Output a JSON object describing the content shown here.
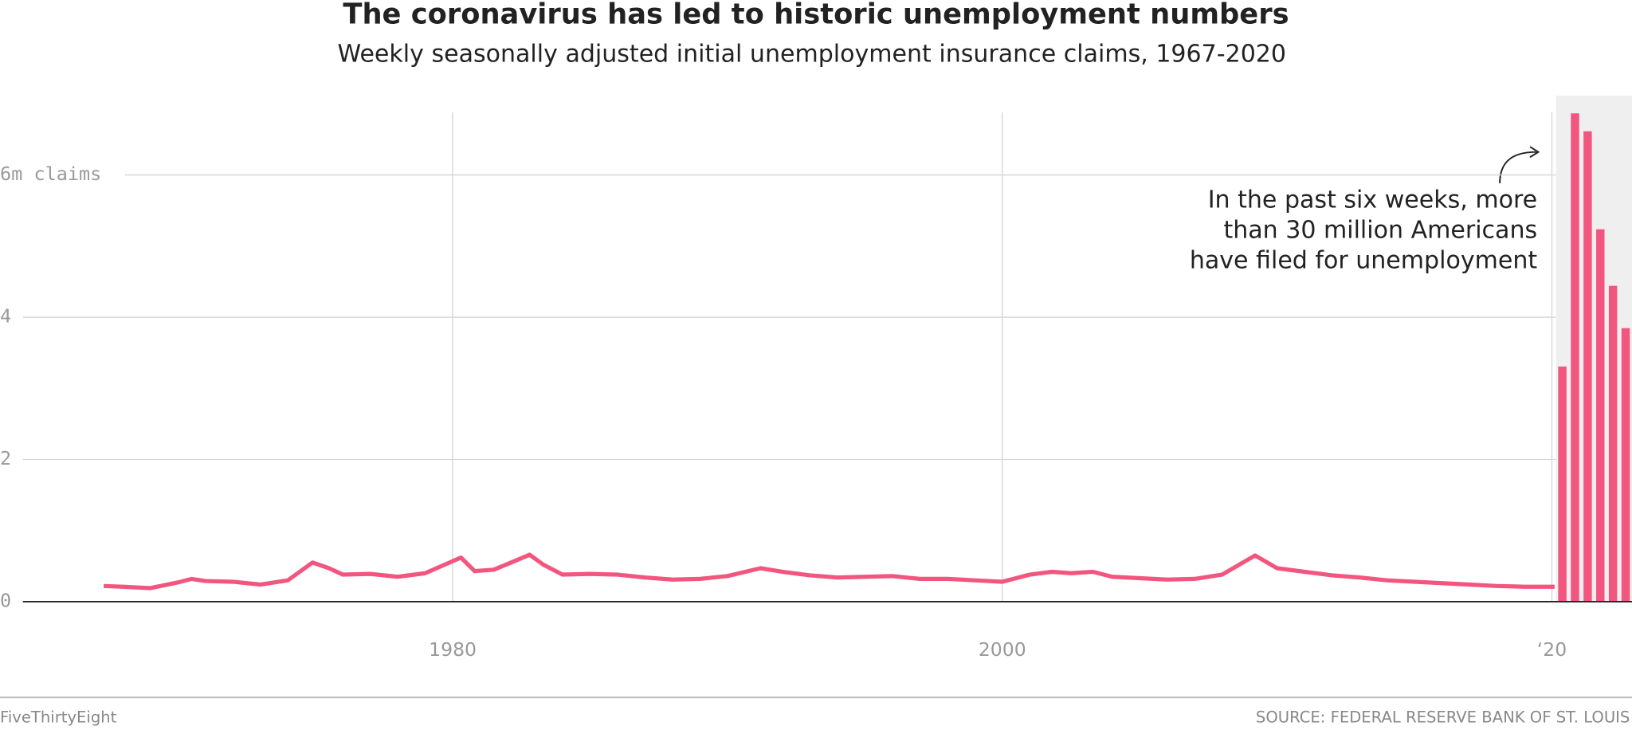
{
  "chart_data": [
    {
      "type": "line",
      "title": "The coronavirus has led to historic unemployment numbers",
      "subtitle": "Weekly seasonally adjusted initial unemployment insurance claims, 1967-2020",
      "color": "#f2567f",
      "x": [
        1967.3,
        1968,
        1969,
        1970,
        1970.5,
        1971,
        1972,
        1973,
        1974,
        1974.9,
        1975.5,
        1976,
        1977,
        1978,
        1979,
        1980.3,
        1980.8,
        1981.5,
        1982,
        1982.8,
        1983.3,
        1984,
        1985,
        1986,
        1987,
        1988,
        1989,
        1990,
        1991.2,
        1992,
        1993,
        1994,
        1995,
        1996,
        1997,
        1998,
        1999,
        2000,
        2001,
        2001.8,
        2002.5,
        2003.3,
        2004,
        2005,
        2006,
        2007,
        2008,
        2009.2,
        2010,
        2011,
        2012,
        2013,
        2014,
        2015,
        2016,
        2017,
        2018,
        2019,
        2020.1
      ],
      "values": [
        0.22,
        0.21,
        0.19,
        0.27,
        0.32,
        0.29,
        0.28,
        0.24,
        0.3,
        0.55,
        0.47,
        0.38,
        0.39,
        0.35,
        0.4,
        0.62,
        0.43,
        0.45,
        0.53,
        0.66,
        0.52,
        0.38,
        0.39,
        0.38,
        0.34,
        0.31,
        0.32,
        0.36,
        0.47,
        0.42,
        0.37,
        0.34,
        0.35,
        0.36,
        0.32,
        0.32,
        0.3,
        0.28,
        0.38,
        0.42,
        0.4,
        0.42,
        0.35,
        0.33,
        0.31,
        0.32,
        0.38,
        0.65,
        0.47,
        0.42,
        0.37,
        0.34,
        0.3,
        0.28,
        0.26,
        0.24,
        0.22,
        0.21,
        0.21
      ],
      "xlim": [
        1964.36,
        2020.15
      ],
      "xticks": [
        1980,
        2000,
        {
          "value": 2020,
          "label": "‘20"
        }
      ],
      "ylim": [
        0,
        6.88
      ],
      "yticks": [
        0,
        2,
        4,
        {
          "value": 6,
          "label": "6m claims"
        }
      ],
      "grid": true,
      "annotation": [
        "In the past six weeks, more",
        "than 30 million Americans",
        "have filed for unemployment"
      ],
      "credit": "FiveThirtyEight",
      "source": "SOURCE: FEDERAL RESERVE BANK OF ST. LOUIS"
    },
    {
      "type": "bar",
      "categories": [
        null,
        null,
        null,
        null,
        null,
        null
      ],
      "values": [
        3.307,
        6.867,
        6.615,
        5.237,
        4.442,
        3.846
      ],
      "color": "#f2567f",
      "ylim": [
        0,
        6.88
      ]
    }
  ]
}
